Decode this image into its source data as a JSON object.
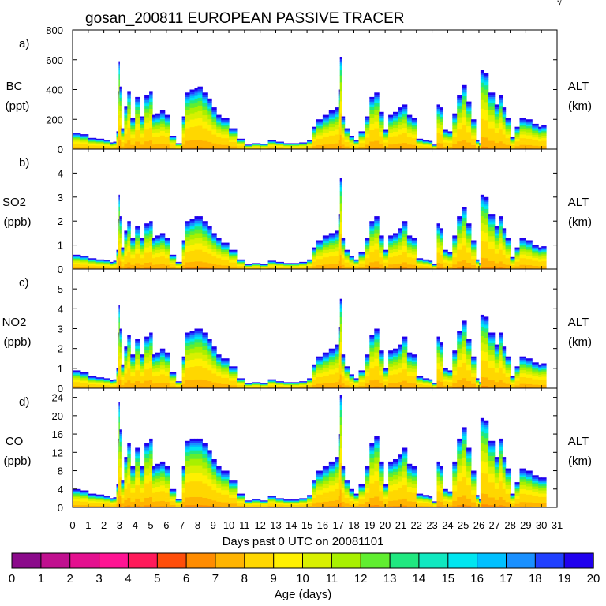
{
  "title": "gosan_200811 EUROPEAN PASSIVE TRACER",
  "corner_mark": "√",
  "panels": [
    {
      "tag": "a)",
      "species": "BC",
      "unit": "(ppt)",
      "right_label": "ALT",
      "right_unit": "(km)",
      "ylim": [
        0,
        800
      ],
      "yticks": [
        "800",
        "600",
        "400",
        "200",
        "0"
      ],
      "ytick_values": [
        800,
        600,
        400,
        200,
        0
      ]
    },
    {
      "tag": "b)",
      "species": "SO2",
      "unit": "(ppb)",
      "right_label": "ALT",
      "right_unit": "(km)",
      "ylim": [
        0,
        5
      ],
      "yticks": [
        "4",
        "3",
        "2",
        "1",
        "0"
      ],
      "ytick_values": [
        4,
        3,
        2,
        1,
        0
      ]
    },
    {
      "tag": "c)",
      "species": "NO2",
      "unit": "(ppb)",
      "right_label": "ALT",
      "right_unit": "(km)",
      "ylim": [
        0,
        6
      ],
      "yticks": [
        "5",
        "4",
        "3",
        "2",
        "1",
        "0"
      ],
      "ytick_values": [
        5,
        4,
        3,
        2,
        1,
        0
      ]
    },
    {
      "tag": "d)",
      "species": "CO",
      "unit": "(ppb)",
      "right_label": "ALT",
      "right_unit": "(km)",
      "ylim": [
        0,
        26
      ],
      "yticks": [
        "24",
        "20",
        "16",
        "12",
        "8",
        "4",
        "0"
      ],
      "ytick_values": [
        24,
        20,
        16,
        12,
        8,
        4,
        0
      ]
    }
  ],
  "xaxis": {
    "label": "Days past 0 UTC on 20081101",
    "xlim": [
      0,
      31
    ],
    "ticks": [
      "0",
      "1",
      "2",
      "3",
      "4",
      "5",
      "6",
      "7",
      "8",
      "9",
      "10",
      "11",
      "12",
      "13",
      "14",
      "15",
      "16",
      "17",
      "18",
      "19",
      "20",
      "21",
      "22",
      "23",
      "24",
      "25",
      "26",
      "27",
      "28",
      "29",
      "30",
      "31"
    ]
  },
  "colorbar": {
    "label": "Age (days)",
    "ticks": [
      "0",
      "1",
      "2",
      "3",
      "4",
      "5",
      "6",
      "7",
      "8",
      "9",
      "10",
      "11",
      "12",
      "13",
      "14",
      "15",
      "16",
      "17",
      "18",
      "19",
      "20"
    ],
    "colors": [
      "#8b0a8b",
      "#c0108f",
      "#e4108f",
      "#ff1493",
      "#ff1a5a",
      "#ff4e0a",
      "#ff8c00",
      "#ffb400",
      "#ffd700",
      "#fff000",
      "#d8f000",
      "#a8f000",
      "#60ee30",
      "#20e880",
      "#10e8c0",
      "#00e6f0",
      "#00c0ff",
      "#1a90ff",
      "#2040ff",
      "#2000ee"
    ]
  },
  "chart_data": {
    "type": "area",
    "note": "Stacked age-resolved concentration time series; values estimated from the figure. Each panel shares the same time axis (days past 0 UTC on 20081101).",
    "x": [
      0,
      0.5,
      1,
      1.5,
      2,
      2.4,
      2.6,
      2.8,
      2.9,
      2.95,
      3.0,
      3.1,
      3.3,
      3.5,
      3.7,
      4.0,
      4.3,
      4.6,
      4.9,
      5.1,
      5.3,
      5.6,
      5.9,
      6.2,
      6.6,
      7.0,
      7.2,
      7.5,
      7.8,
      8.0,
      8.3,
      8.6,
      8.9,
      9.2,
      9.5,
      10.0,
      10.5,
      11.0,
      11.5,
      12.0,
      12.5,
      13.0,
      13.5,
      14.0,
      14.5,
      15.0,
      15.3,
      15.6,
      16.0,
      16.4,
      16.8,
      17.0,
      17.1,
      17.2,
      17.4,
      17.7,
      18.0,
      18.3,
      18.7,
      19.0,
      19.3,
      19.6,
      19.9,
      20.2,
      20.5,
      20.8,
      21.1,
      21.4,
      21.7,
      22.0,
      22.4,
      22.8,
      23.0,
      23.3,
      23.5,
      23.7,
      24.0,
      24.3,
      24.6,
      24.9,
      25.2,
      25.5,
      25.8,
      26.0,
      26.1,
      26.3,
      26.6,
      27.0,
      27.3,
      27.5,
      27.7,
      28.0,
      28.3,
      28.6,
      29.0,
      29.4,
      29.8,
      30.0
    ],
    "series": [
      {
        "name": "BC",
        "unit": "ppt",
        "values": [
          110,
          100,
          75,
          70,
          62,
          45,
          50,
          120,
          390,
          590,
          420,
          140,
          290,
          390,
          210,
          350,
          220,
          360,
          390,
          230,
          240,
          260,
          230,
          90,
          40,
          220,
          380,
          400,
          410,
          420,
          380,
          340,
          280,
          230,
          210,
          140,
          70,
          30,
          40,
          35,
          60,
          50,
          40,
          40,
          45,
          60,
          150,
          200,
          230,
          260,
          280,
          400,
          620,
          220,
          140,
          90,
          60,
          120,
          220,
          350,
          380,
          250,
          130,
          230,
          250,
          280,
          300,
          230,
          210,
          70,
          60,
          55,
          30,
          300,
          280,
          130,
          120,
          240,
          360,
          430,
          320,
          200,
          60,
          40,
          530,
          510,
          380,
          300,
          360,
          280,
          210,
          80,
          150,
          210,
          200,
          170,
          150,
          160
        ]
      },
      {
        "name": "SO2",
        "unit": "ppb",
        "values": [
          0.6,
          0.55,
          0.45,
          0.4,
          0.38,
          0.3,
          0.35,
          0.8,
          2.1,
          3.1,
          2.2,
          0.9,
          1.6,
          2.0,
          1.3,
          1.8,
          1.3,
          1.9,
          2.0,
          1.3,
          1.4,
          1.5,
          1.3,
          0.6,
          0.3,
          1.2,
          2.0,
          2.1,
          2.2,
          2.2,
          2.0,
          1.8,
          1.5,
          1.3,
          1.1,
          0.8,
          0.4,
          0.2,
          0.25,
          0.2,
          0.35,
          0.3,
          0.25,
          0.25,
          0.3,
          0.4,
          0.9,
          1.2,
          1.4,
          1.5,
          1.6,
          2.3,
          3.8,
          1.3,
          0.8,
          0.55,
          0.4,
          0.7,
          1.3,
          2.0,
          2.2,
          1.4,
          0.8,
          1.4,
          1.5,
          1.7,
          2.0,
          1.4,
          1.3,
          0.45,
          0.4,
          0.35,
          0.2,
          1.9,
          1.7,
          0.8,
          0.7,
          1.4,
          2.2,
          2.6,
          1.9,
          1.2,
          0.4,
          0.25,
          3.1,
          3.0,
          2.3,
          1.8,
          2.2,
          1.7,
          1.3,
          0.5,
          0.9,
          1.3,
          1.2,
          1.0,
          0.9,
          0.95
        ]
      },
      {
        "name": "NO2",
        "unit": "ppb",
        "values": [
          0.9,
          0.8,
          0.6,
          0.55,
          0.5,
          0.4,
          0.45,
          1.0,
          2.8,
          4.2,
          3.0,
          1.2,
          2.1,
          2.7,
          1.7,
          2.5,
          1.7,
          2.6,
          2.8,
          1.7,
          1.8,
          2.0,
          1.8,
          0.8,
          0.35,
          1.6,
          2.8,
          2.9,
          3.0,
          3.0,
          2.8,
          2.5,
          2.1,
          1.7,
          1.5,
          1.1,
          0.5,
          0.25,
          0.3,
          0.25,
          0.45,
          0.35,
          0.3,
          0.3,
          0.35,
          0.5,
          1.2,
          1.6,
          1.8,
          2.0,
          2.2,
          3.1,
          4.5,
          1.7,
          1.1,
          0.7,
          0.5,
          0.9,
          1.7,
          2.7,
          3.0,
          1.9,
          1.0,
          1.9,
          2.0,
          2.2,
          2.6,
          1.8,
          1.7,
          0.6,
          0.5,
          0.45,
          0.25,
          2.6,
          2.3,
          1.0,
          0.9,
          1.9,
          2.9,
          3.4,
          2.5,
          1.6,
          0.5,
          0.3,
          3.7,
          3.6,
          2.8,
          2.2,
          2.8,
          2.1,
          1.6,
          0.6,
          1.1,
          1.6,
          1.5,
          1.3,
          1.2,
          1.25
        ]
      },
      {
        "name": "CO",
        "unit": "ppb",
        "values": [
          4,
          3.7,
          3,
          2.8,
          2.5,
          2,
          2.2,
          5,
          15,
          23,
          17,
          6,
          11,
          14,
          9,
          13,
          9,
          14,
          15,
          9,
          9.5,
          10,
          9,
          4,
          1.8,
          9,
          14.5,
          15,
          15,
          15,
          14,
          12.5,
          10.5,
          9,
          8,
          6,
          3,
          1.5,
          1.8,
          1.5,
          2.5,
          2,
          1.7,
          1.7,
          2,
          2.7,
          6,
          8,
          9,
          10,
          11,
          16,
          24.5,
          9,
          6,
          4,
          3,
          5,
          9,
          14,
          15.5,
          10,
          5,
          10,
          10.5,
          11.5,
          13,
          9.5,
          9,
          3,
          2.7,
          2.4,
          1.3,
          10,
          9,
          4,
          3.5,
          10,
          15,
          17.5,
          13,
          8,
          2.7,
          1.7,
          19.5,
          19,
          14.5,
          11,
          15,
          11,
          8.5,
          3,
          5.5,
          8.5,
          8,
          7,
          6.5,
          6.5
        ]
      }
    ],
    "layers_note": "Each column is stacked from old age (bottom, orange/red tones) to young age (top, blue/purple) following the colorbar."
  }
}
